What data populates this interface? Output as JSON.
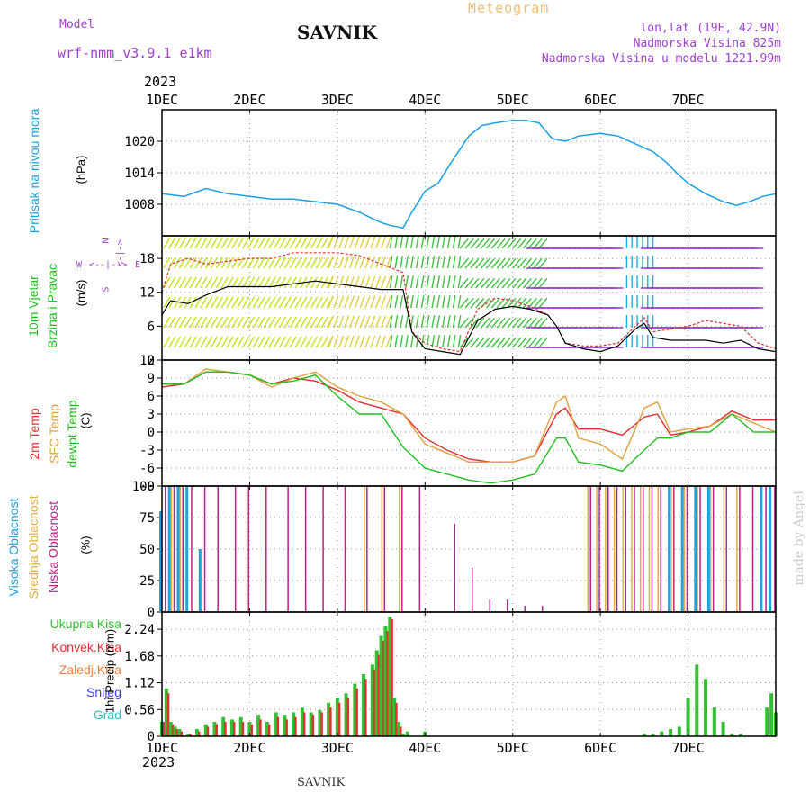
{
  "header": {
    "model_label": "Model",
    "model_name": "wrf-nmm_v3.9.1 e1km",
    "station": "SAVNIK",
    "title": "Meteogram",
    "lonlat": "lon,lat (19E, 42.9N)",
    "altitude": "Nadmorska Visina 825m",
    "model_altitude": "Nadmorska Visina u modelu 1221.99m",
    "year": "2023",
    "footer_station": "SAVNIK",
    "watermark": "made by Angel"
  },
  "colors": {
    "pressure": "#1aa0e8",
    "wind_speed": "#e03030",
    "wind_mean": "#000000",
    "temp2m": "#e03030",
    "sfc": "#e0a040",
    "dewpt": "#20c020",
    "high_cloud": "#20a0e0",
    "mid_cloud": "#e0b040",
    "low_cloud": "#c0208a",
    "precip_total": "#30c030",
    "precip_conv": "#e03030"
  },
  "axis_labels": {
    "pressure": "Pritisak na nivou mora",
    "pressure_unit": "(hPa)",
    "wind1": "10m Vjetar",
    "wind2": "Brzina i Pravac",
    "wind_unit": "(m/s)",
    "temp1": "2m Temp",
    "temp2": "SFC Temp",
    "temp3": "dewpt Temp",
    "temp_unit": "(C)",
    "cloud1": "Visoka Oblacnost",
    "cloud2": "Srednja Oblacnost",
    "cloud3": "Niska Oblacnost",
    "cloud_unit": "(%)",
    "precip_total": "Ukupna Kisa",
    "precip_conv": "Konvek.Kisa",
    "precip_frozen": "Zaledj.Kisa",
    "precip_snow": "Snijeg",
    "precip_hail": "Grad",
    "precip_unit": "1hr Precip (mm)"
  },
  "compass": {
    "n": "N",
    "s": "S",
    "w": "W",
    "e": "E"
  },
  "chart_data": [
    {
      "type": "line",
      "id": "pressure",
      "x_ticks": [
        "1DEC",
        "2DEC",
        "3DEC",
        "4DEC",
        "5DEC",
        "6DEC",
        "7DEC"
      ],
      "ylim": [
        1002,
        1026
      ],
      "y_ticks": [
        "1008",
        "1014",
        "1020"
      ],
      "grid": true,
      "x": [
        0,
        0.25,
        0.5,
        0.75,
        1,
        1.25,
        1.5,
        1.75,
        2,
        2.25,
        2.5,
        2.6,
        2.75,
        2.85,
        3,
        3.15,
        3.3,
        3.5,
        3.65,
        3.8,
        4,
        4.15,
        4.3,
        4.45,
        4.6,
        4.75,
        5,
        5.2,
        5.4,
        5.6,
        5.75,
        5.9,
        6,
        6.2,
        6.4,
        6.55,
        6.7,
        6.85,
        7
      ],
      "series": [
        {
          "values": [
            1010,
            1009.5,
            1011,
            1010,
            1009.5,
            1009,
            1009,
            1008.5,
            1008,
            1006.5,
            1004.5,
            1004,
            1003.5,
            1006.5,
            1010.5,
            1012,
            1016,
            1021,
            1023,
            1023.5,
            1024,
            1024,
            1023.5,
            1020.5,
            1020,
            1021,
            1021.5,
            1021,
            1019.5,
            1018,
            1016,
            1013.5,
            1012,
            1010,
            1008.5,
            1007.8,
            1008.5,
            1009.5,
            1010
          ]
        }
      ]
    },
    {
      "type": "line",
      "id": "wind",
      "x_ticks": [
        "1DEC",
        "2DEC",
        "3DEC",
        "4DEC",
        "5DEC",
        "6DEC",
        "7DEC"
      ],
      "ylim": [
        0,
        22
      ],
      "y_ticks": [
        "0",
        "6",
        "12",
        "18"
      ],
      "grid": true,
      "x": [
        0,
        0.1,
        0.3,
        0.5,
        0.75,
        1,
        1.25,
        1.5,
        1.75,
        2,
        2.25,
        2.5,
        2.75,
        2.85,
        3,
        3.2,
        3.4,
        3.6,
        3.8,
        4,
        4.2,
        4.4,
        4.5,
        4.6,
        4.8,
        5,
        5.2,
        5.4,
        5.5,
        5.6,
        5.8,
        6,
        6.2,
        6.4,
        6.6,
        6.8,
        7
      ],
      "series": [
        {
          "values": [
            12,
            17,
            18,
            17,
            17.5,
            18,
            18,
            19,
            19,
            19,
            18.5,
            17,
            15.5,
            5,
            3,
            2,
            1.5,
            9,
            11,
            10.5,
            9.5,
            8,
            6,
            3,
            2.5,
            2.5,
            3,
            6,
            7.5,
            5,
            5.5,
            6,
            7,
            6.5,
            6,
            3,
            2
          ]
        },
        {
          "values": [
            8,
            10.5,
            10,
            11.5,
            13,
            13,
            13,
            13.5,
            14,
            13.5,
            13,
            12.5,
            12.5,
            5,
            2,
            1.5,
            1,
            7,
            9,
            9.5,
            9,
            8,
            6,
            3,
            2,
            1.5,
            2.5,
            5.5,
            6.5,
            4,
            3.5,
            3.5,
            3.5,
            3,
            3.5,
            2,
            1.5
          ]
        }
      ]
    },
    {
      "type": "line",
      "id": "temperature",
      "x_ticks": [
        "1DEC",
        "2DEC",
        "3DEC",
        "4DEC",
        "5DEC",
        "6DEC",
        "7DEC"
      ],
      "ylim": [
        -9,
        12
      ],
      "y_ticks": [
        "-9",
        "-6",
        "-3",
        "0",
        "3",
        "6",
        "9",
        "12"
      ],
      "grid": true,
      "x": [
        0,
        0.25,
        0.5,
        0.75,
        1,
        1.25,
        1.5,
        1.75,
        2,
        2.25,
        2.5,
        2.75,
        3,
        3.25,
        3.5,
        3.75,
        4,
        4.25,
        4.5,
        4.6,
        4.75,
        5,
        5.25,
        5.5,
        5.65,
        5.8,
        6,
        6.25,
        6.5,
        6.75,
        7
      ],
      "series": [
        {
          "name": "2m Temp",
          "values": [
            7.5,
            8,
            10,
            10,
            9.5,
            8,
            9,
            8.5,
            7,
            5,
            4,
            3,
            -1,
            -3,
            -4.5,
            -5,
            -5,
            -4,
            3,
            4,
            0.5,
            0.5,
            -0.5,
            2.5,
            3,
            -0.5,
            0,
            1,
            3.5,
            2,
            2
          ]
        },
        {
          "name": "SFC Temp",
          "values": [
            8,
            8,
            10.5,
            10,
            9.5,
            7.5,
            9,
            10,
            7.5,
            6,
            5,
            3,
            -2,
            -3.5,
            -5,
            -5,
            -5,
            -4,
            5,
            6,
            -1,
            -2,
            -4.5,
            4,
            5,
            0,
            0.5,
            1,
            3,
            1.5,
            0
          ]
        },
        {
          "name": "dewpt Temp",
          "values": [
            8,
            8,
            10,
            10,
            9.5,
            8,
            8.5,
            9.5,
            6,
            3,
            3,
            -2.5,
            -6,
            -7,
            -8,
            -8.5,
            -8,
            -7,
            -1,
            -1,
            -5,
            -5.5,
            -6.5,
            -3,
            -1,
            -1,
            0,
            0,
            3,
            0,
            0
          ]
        }
      ]
    },
    {
      "type": "bar",
      "id": "clouds",
      "x_ticks": [
        "1DEC",
        "2DEC",
        "3DEC",
        "4DEC",
        "5DEC",
        "6DEC",
        "7DEC"
      ],
      "ylim": [
        0,
        100
      ],
      "y_ticks": [
        "0",
        "25",
        "50",
        "75",
        "100"
      ],
      "grid": true,
      "x": [
        0,
        0.1,
        0.2,
        0.3,
        0.45,
        0.6,
        0.8,
        0.95,
        1.15,
        1.4,
        1.6,
        1.8,
        2.05,
        2.3,
        2.5,
        2.7,
        2.9,
        3.3,
        3.5,
        3.7,
        3.9,
        4.1,
        4.3,
        4.85,
        4.95,
        5.05,
        5.15,
        5.25,
        5.35,
        5.45,
        5.55,
        5.65,
        5.8,
        5.95,
        6.1,
        6.25,
        6.4,
        6.55,
        6.7,
        6.85,
        6.95
      ],
      "series": [
        {
          "name": "Visoka Oblacnost",
          "values": [
            80,
            100,
            100,
            100,
            50,
            0,
            0,
            0,
            0,
            0,
            0,
            0,
            0,
            0,
            0,
            0,
            0,
            0,
            0,
            0,
            0,
            0,
            0,
            0,
            0,
            0,
            0,
            0,
            0,
            0,
            0,
            0,
            100,
            100,
            100,
            100,
            0,
            0,
            0,
            100,
            100
          ]
        },
        {
          "name": "Srednja Oblacnost",
          "values": [
            0,
            100,
            100,
            0,
            0,
            0,
            0,
            0,
            0,
            0,
            0,
            0,
            0,
            100,
            100,
            100,
            0,
            0,
            0,
            0,
            0,
            0,
            0,
            100,
            100,
            100,
            100,
            100,
            100,
            100,
            100,
            100,
            100,
            100,
            100,
            100,
            100,
            100,
            0,
            0,
            0
          ]
        },
        {
          "name": "Niska Oblacnost",
          "values": [
            100,
            100,
            100,
            100,
            100,
            100,
            100,
            100,
            100,
            100,
            100,
            100,
            100,
            100,
            100,
            100,
            100,
            70,
            35,
            10,
            10,
            5,
            5,
            100,
            100,
            100,
            100,
            100,
            100,
            100,
            100,
            100,
            100,
            100,
            100,
            100,
            100,
            100,
            100,
            100,
            100
          ]
        }
      ]
    },
    {
      "type": "bar",
      "id": "precip",
      "x_ticks": [
        "1DEC",
        "2DEC",
        "3DEC",
        "4DEC",
        "5DEC",
        "6DEC",
        "7DEC"
      ],
      "ylim": [
        0,
        2.6
      ],
      "y_ticks": [
        "0",
        "0.56",
        "1.12",
        "1.68",
        "2.24"
      ],
      "grid": true,
      "x": [
        0,
        0.05,
        0.1,
        0.15,
        0.2,
        0.3,
        0.4,
        0.5,
        0.6,
        0.7,
        0.8,
        0.9,
        1,
        1.1,
        1.2,
        1.3,
        1.4,
        1.5,
        1.6,
        1.7,
        1.8,
        1.9,
        2,
        2.1,
        2.2,
        2.3,
        2.4,
        2.45,
        2.5,
        2.55,
        2.6,
        2.65,
        2.7,
        2.75,
        2.8,
        3,
        5.5,
        5.6,
        5.7,
        5.8,
        5.9,
        6,
        6.1,
        6.2,
        6.3,
        6.4,
        6.5,
        6.6,
        6.7,
        6.8,
        6.9,
        6.95,
        7
      ],
      "series": [
        {
          "name": "Ukupna Kisa",
          "values": [
            0.3,
            1,
            0.3,
            0.2,
            0.15,
            0.05,
            0.15,
            0.25,
            0.3,
            0.4,
            0.35,
            0.4,
            0.3,
            0.45,
            0.3,
            0.5,
            0.45,
            0.5,
            0.6,
            0.5,
            0.55,
            0.7,
            0.8,
            0.9,
            1.1,
            1.3,
            1.5,
            1.8,
            2.1,
            2.3,
            2.5,
            0.8,
            0.3,
            0.05,
            0.1,
            0.1,
            0.05,
            0.05,
            0.1,
            0.15,
            0.2,
            0.8,
            1.5,
            1.2,
            0.6,
            0.3,
            0.05,
            0.05,
            0,
            0,
            0.6,
            0.9,
            0.5
          ]
        },
        {
          "name": "Konvek.Kisa",
          "values": [
            0.3,
            0.9,
            0.25,
            0.15,
            0.1,
            0.05,
            0.1,
            0.2,
            0.25,
            0.3,
            0.3,
            0.3,
            0.25,
            0.35,
            0.25,
            0.4,
            0.35,
            0.4,
            0.5,
            0.45,
            0.5,
            0.6,
            0.7,
            0.8,
            1,
            1.2,
            1.4,
            1.7,
            2,
            2.2,
            2.45,
            0.7,
            0.2,
            0,
            0,
            0,
            0,
            0,
            0,
            0,
            0,
            0,
            0,
            0,
            0,
            0,
            0,
            0,
            0,
            0,
            0,
            0,
            0
          ]
        }
      ]
    }
  ]
}
